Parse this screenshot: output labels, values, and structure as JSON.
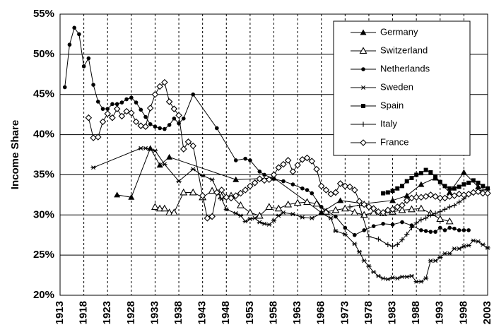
{
  "chart_data": {
    "type": "line",
    "y_label": "Income Share",
    "xlim": [
      1913,
      2003
    ],
    "xticks": [
      1913,
      1918,
      1923,
      1928,
      1933,
      1938,
      1943,
      1948,
      1953,
      1958,
      1963,
      1968,
      1973,
      1978,
      1983,
      1988,
      1993,
      1998,
      2003
    ],
    "ylim": [
      20,
      55
    ],
    "yticks": [
      {
        "value": 20,
        "label": "20%"
      },
      {
        "value": 25,
        "label": "25%"
      },
      {
        "value": 30,
        "label": "30%"
      },
      {
        "value": 35,
        "label": "35%"
      },
      {
        "value": 40,
        "label": "40%"
      },
      {
        "value": 45,
        "label": "45%"
      },
      {
        "value": 50,
        "label": "50%"
      },
      {
        "value": 55,
        "label": "55%"
      }
    ],
    "grid": true,
    "legend": "top-right",
    "series": [
      {
        "name": "Germany",
        "color": "#000000",
        "marker": "triangle",
        "x": [
          1925,
          1928,
          1932,
          1934,
          1936,
          1950,
          1958,
          1968,
          1972,
          1977,
          1983,
          1986,
          1989,
          1992,
          1995,
          1998,
          2001
        ],
        "values": [
          32.5,
          32.2,
          38.3,
          36.2,
          37.2,
          34.4,
          34.6,
          30.3,
          31.8,
          31.4,
          31.8,
          32.4,
          33.8,
          34.6,
          32.8,
          35.3,
          33.5
        ]
      },
      {
        "name": "Switzerland",
        "color": "#000000",
        "marker": "triangle-open",
        "x": [
          1933,
          1934,
          1935,
          1936,
          1937,
          1939,
          1941,
          1943,
          1945,
          1947,
          1949,
          1951,
          1953,
          1955,
          1957,
          1959,
          1961,
          1963,
          1965,
          1967,
          1969,
          1971,
          1973,
          1975,
          1977,
          1979,
          1981,
          1983,
          1985,
          1987,
          1989,
          1991,
          1993,
          1995
        ],
        "values": [
          31,
          30.8,
          30.8,
          30.3,
          30.3,
          32.8,
          32.8,
          32.2,
          33,
          32.3,
          32.4,
          31.2,
          30.3,
          29.9,
          31,
          30.8,
          31.3,
          31.5,
          31.6,
          31.4,
          30.4,
          30.6,
          30.8,
          30.3,
          30,
          30.3,
          30.2,
          30.4,
          30.6,
          30.7,
          30.8,
          30.2,
          29.5,
          29.2
        ]
      },
      {
        "name": "Netherlands",
        "color": "#000000",
        "marker": "circle",
        "x": [
          1914,
          1915,
          1916,
          1917,
          1918,
          1919,
          1920,
          1921,
          1922,
          1923,
          1924,
          1925,
          1926,
          1927,
          1928,
          1929,
          1930,
          1931,
          1932,
          1933,
          1934,
          1935,
          1936,
          1937,
          1938,
          1939,
          1941,
          1946,
          1950,
          1952,
          1953,
          1955,
          1956,
          1958,
          1960,
          1962,
          1964,
          1965,
          1966,
          1968,
          1971,
          1973,
          1975,
          1977,
          1979,
          1981,
          1983,
          1985,
          1987,
          1989,
          1990,
          1991,
          1992,
          1993,
          1994,
          1995,
          1996,
          1997,
          1998,
          1999
        ],
        "values": [
          45.9,
          51.2,
          53.3,
          52.5,
          48.5,
          49.5,
          46.2,
          44.1,
          43.2,
          43.2,
          43.8,
          43.8,
          44,
          44.4,
          44.6,
          44,
          43.1,
          42.2,
          41.3,
          41,
          40.8,
          40.7,
          41.2,
          42,
          41.4,
          42,
          45,
          40.8,
          36.8,
          37,
          36.8,
          35.4,
          35,
          34.5,
          34.2,
          33.8,
          33.3,
          33.1,
          32.7,
          31,
          29.8,
          28.4,
          27.5,
          28.1,
          28.6,
          28.9,
          28.8,
          29.1,
          28.7,
          28.1,
          28,
          27.9,
          27.9,
          28.4,
          28.1,
          28.4,
          28.3,
          28.1,
          28.1,
          28.1
        ]
      },
      {
        "name": "Sweden",
        "color": "#000000",
        "marker": "asterisk",
        "x": [
          1920,
          1930,
          1931,
          1933,
          1935,
          1938,
          1941,
          1943,
          1945,
          1947,
          1948,
          1950,
          1951,
          1952,
          1953,
          1954,
          1955,
          1956,
          1957,
          1958,
          1959,
          1960,
          1962,
          1964,
          1966,
          1968,
          1970,
          1971,
          1973,
          1975,
          1976,
          1977,
          1978,
          1979,
          1980,
          1981,
          1982,
          1983,
          1984,
          1985,
          1986,
          1987,
          1988,
          1989,
          1990,
          1991,
          1992,
          1993,
          1994,
          1995,
          1996,
          1997,
          1998,
          1999,
          2000,
          2001,
          2002,
          2003
        ],
        "values": [
          35.9,
          38.3,
          38.3,
          38,
          36.3,
          34.2,
          35.7,
          34.9,
          34.4,
          32,
          30.7,
          30.2,
          29.9,
          29.2,
          29.5,
          29.6,
          29.1,
          28.9,
          28.8,
          29.3,
          29.9,
          30.3,
          30.1,
          29.7,
          29.6,
          30.2,
          29.6,
          28,
          27.6,
          26.4,
          25.4,
          24.3,
          23.6,
          22.9,
          22.4,
          22.1,
          22,
          22.2,
          22.1,
          22.3,
          22.3,
          22.4,
          21.7,
          21.7,
          22.1,
          24.3,
          24.3,
          24.7,
          25.2,
          25.2,
          25.8,
          25.8,
          26.1,
          26.2,
          26.8,
          26.7,
          26.3,
          25.9
        ]
      },
      {
        "name": "Spain",
        "color": "#000000",
        "marker": "square",
        "x": [
          1981,
          1982,
          1983,
          1984,
          1985,
          1986,
          1987,
          1988,
          1989,
          1990,
          1991,
          1992,
          1993,
          1994,
          1995,
          1996,
          1997,
          1998,
          1999,
          2000,
          2001,
          2002,
          2003
        ],
        "values": [
          32.7,
          32.8,
          33,
          33.3,
          33.6,
          34.2,
          34.6,
          35,
          35.2,
          35.6,
          35.3,
          34.8,
          34.1,
          33.6,
          33.3,
          33.3,
          33.5,
          33.8,
          34,
          34.3,
          34,
          33.6,
          33.3
        ]
      },
      {
        "name": "Italy",
        "color": "#000000",
        "marker": "plus",
        "x": [
          1974,
          1976,
          1978,
          1980,
          1982,
          1983,
          1984,
          1985,
          1986,
          1987,
          1988,
          1989,
          1990,
          1991,
          1992,
          1993,
          1994,
          1995,
          1996,
          1997,
          1998,
          1999,
          2000,
          2001,
          2002,
          2003
        ],
        "values": [
          31,
          31.2,
          27.3,
          27,
          26.3,
          26.1,
          26.3,
          26.9,
          27.6,
          28.4,
          29,
          29.4,
          29.6,
          30,
          30.2,
          30.4,
          30.7,
          31,
          31.2,
          31.6,
          32,
          32.5,
          32.8,
          33,
          33.1,
          33.2
        ]
      },
      {
        "name": "France",
        "color": "#000000",
        "marker": "diamond-open",
        "x": [
          1919,
          1920,
          1921,
          1922,
          1923,
          1924,
          1925,
          1926,
          1927,
          1928,
          1929,
          1930,
          1931,
          1932,
          1933,
          1934,
          1935,
          1936,
          1937,
          1938,
          1939,
          1940,
          1941,
          1943,
          1944,
          1945,
          1946,
          1947,
          1948,
          1949,
          1950,
          1951,
          1952,
          1953,
          1954,
          1955,
          1956,
          1957,
          1958,
          1959,
          1960,
          1961,
          1962,
          1963,
          1964,
          1965,
          1966,
          1967,
          1968,
          1969,
          1970,
          1971,
          1972,
          1973,
          1974,
          1975,
          1976,
          1977,
          1978,
          1979,
          1980,
          1981,
          1982,
          1983,
          1984,
          1985,
          1986,
          1987,
          1988,
          1989,
          1990,
          1991,
          1992,
          1993,
          1994,
          1995,
          1996,
          1997,
          1998,
          1999,
          2000,
          2001,
          2002,
          2003
        ],
        "values": [
          42.1,
          39.6,
          39.7,
          41.6,
          42.6,
          42.1,
          43.2,
          42.3,
          42.9,
          42.7,
          41.6,
          41.1,
          41,
          43.3,
          45,
          46,
          46.5,
          44.1,
          43.2,
          42.4,
          38.2,
          39.1,
          38.6,
          32.4,
          29.6,
          29.8,
          32.8,
          33.1,
          32.2,
          32.1,
          32.4,
          32.7,
          33.1,
          33.6,
          34,
          34.5,
          34.3,
          34.4,
          35,
          35.9,
          36.3,
          36.8,
          35.4,
          36.2,
          36.9,
          37.1,
          36.7,
          35.7,
          33.6,
          33.1,
          32.6,
          32.8,
          33.9,
          33.6,
          33.5,
          33.1,
          31.7,
          31.3,
          31,
          30.8,
          30.4,
          30.3,
          30.6,
          30.7,
          31,
          31.2,
          31.8,
          32.1,
          32.2,
          32.2,
          32.3,
          32.5,
          32.3,
          32.1,
          32.1,
          32.3,
          32.4,
          32.6,
          32.5,
          32.6,
          32.8,
          32.9,
          32.7,
          32.7
        ]
      }
    ]
  }
}
